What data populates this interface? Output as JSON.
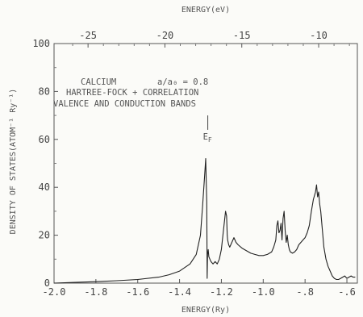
{
  "chart_data": {
    "type": "line",
    "xlabel_bottom": "ENERGY(Ry)",
    "xlabel_top": "ENERGY(eV)",
    "ylabel": "DENSITY OF STATES(ATOM⁻¹ Ry⁻¹)",
    "xlim": [
      -2.0,
      -0.55
    ],
    "ylim": [
      0,
      100
    ],
    "x_ticks": [
      "-2.0",
      "-1.8",
      "-1.6",
      "-1.4",
      "-1.2",
      "-1.0",
      "-.8",
      "-.6"
    ],
    "x_tick_values": [
      -2.0,
      -1.8,
      -1.6,
      -1.4,
      -1.2,
      -1.0,
      -0.8,
      -0.6
    ],
    "top_ticks": [
      "-25",
      "-20",
      "-15",
      "-10"
    ],
    "top_tick_values": [
      -25,
      -20,
      -15,
      -10
    ],
    "y_ticks": [
      "0",
      "20",
      "40",
      "60",
      "80",
      "100"
    ],
    "y_tick_values": [
      0,
      20,
      40,
      60,
      80,
      100
    ],
    "annotations": {
      "line1": "CALCIUM",
      "line2": "a/a₀ = 0.8",
      "line3": "HARTREE-FOCK + CORRELATION",
      "line4": "VALENCE AND CONDUCTION BANDS",
      "fermi_label": "E",
      "fermi_sub": "F"
    },
    "fermi_energy": -1.265,
    "series": [
      {
        "x": [
          -2.0,
          -1.9,
          -1.8,
          -1.7,
          -1.6,
          -1.5,
          -1.45,
          -1.4,
          -1.35,
          -1.32,
          -1.3,
          -1.29,
          -1.28,
          -1.275,
          -1.27,
          -1.268,
          -1.266,
          -1.263,
          -1.26,
          -1.255,
          -1.25,
          -1.24,
          -1.23,
          -1.22,
          -1.21,
          -1.2,
          -1.19,
          -1.18,
          -1.175,
          -1.172,
          -1.17,
          -1.165,
          -1.16,
          -1.15,
          -1.14,
          -1.13,
          -1.12,
          -1.1,
          -1.08,
          -1.06,
          -1.04,
          -1.02,
          -1.0,
          -0.98,
          -0.96,
          -0.95,
          -0.94,
          -0.935,
          -0.93,
          -0.925,
          -0.92,
          -0.915,
          -0.91,
          -0.905,
          -0.9,
          -0.895,
          -0.89,
          -0.885,
          -0.88,
          -0.875,
          -0.87,
          -0.86,
          -0.85,
          -0.84,
          -0.83,
          -0.82,
          -0.81,
          -0.8,
          -0.79,
          -0.78,
          -0.77,
          -0.76,
          -0.75,
          -0.745,
          -0.74,
          -0.735,
          -0.73,
          -0.725,
          -0.72,
          -0.715,
          -0.71,
          -0.7,
          -0.69,
          -0.68,
          -0.67,
          -0.66,
          -0.65,
          -0.64,
          -0.63,
          -0.62,
          -0.61,
          -0.6,
          -0.59,
          -0.58,
          -0.57,
          -0.56
        ],
        "y": [
          0,
          0.3,
          0.6,
          1,
          1.5,
          2.5,
          3.5,
          5,
          8,
          12,
          20,
          32,
          45,
          52,
          34,
          2,
          12,
          14,
          11,
          10,
          9,
          8,
          9,
          8,
          10,
          14,
          22,
          30,
          28,
          20,
          18,
          16,
          15,
          17,
          19,
          17,
          16,
          14.5,
          13.5,
          12.5,
          12,
          11.5,
          11.5,
          12,
          13,
          15,
          18,
          24,
          26,
          21,
          22,
          25,
          18,
          27,
          30,
          22,
          17,
          20,
          16,
          14,
          13,
          12.5,
          13,
          14,
          16,
          17,
          18,
          19,
          21,
          24,
          30,
          35,
          38,
          41,
          36,
          38,
          33,
          30,
          25,
          20,
          15,
          10,
          7,
          5,
          3,
          2,
          1.5,
          1.5,
          2,
          2.5,
          3,
          2,
          2.5,
          3,
          2.5,
          2.5
        ]
      }
    ]
  }
}
